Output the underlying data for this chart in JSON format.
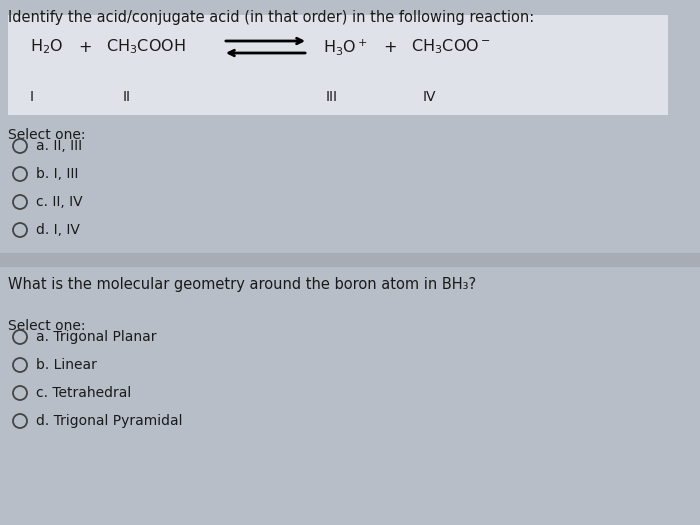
{
  "outer_bg": "#a8adb5",
  "panel_bg": "#b8bec8",
  "rxn_box_bg": "#dfe2e8",
  "text_color": "#1a1a1a",
  "q1_title": "Identify the acid/conjugate acid (in that order) in the following reaction:",
  "q1_select": "Select one:",
  "q1_options": [
    "a. II, III",
    "b. I, III",
    "c. II, IV",
    "d. I, IV"
  ],
  "q2_title": "What is the molecular geometry around the boron atom in BH₃?",
  "q2_select": "Select one:",
  "q2_options": [
    "a. Trigonal Planar",
    "b. Linear",
    "c. Tetrahedral",
    "d. Trigonal Pyramidal"
  ],
  "title_fontsize": 10.5,
  "option_fontsize": 10,
  "rxn_fontsize": 11.5,
  "label_fontsize": 10
}
